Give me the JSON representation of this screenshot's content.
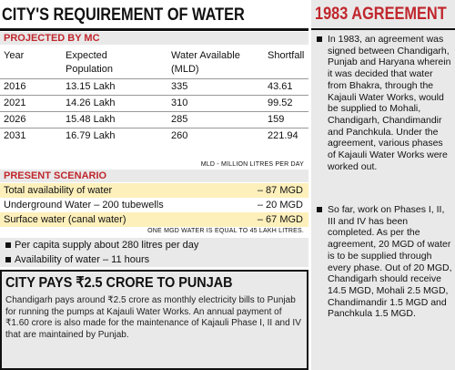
{
  "left": {
    "title": "CITY'S REQUIREMENT OF WATER",
    "projected": {
      "heading": "PROJECTED BY MC",
      "headers": [
        "Year",
        "Expected\nPopulation",
        "Water Available\n(MLD)",
        "Shortfall"
      ],
      "rows": [
        [
          "2016",
          "13.15 Lakh",
          "335",
          "43.61"
        ],
        [
          "2021",
          "14.26 Lakh",
          "310",
          "99.52"
        ],
        [
          "2026",
          "15.48 Lakh",
          "285",
          "159"
        ],
        [
          "2031",
          "16.79 Lakh",
          "260",
          "221.94"
        ]
      ],
      "note": "MLD - MILLION LITRES PER DAY"
    },
    "scenario": {
      "heading": "PRESENT SCENARIO",
      "rows": [
        {
          "label": "Total availability of water",
          "value": "– 87 MGD"
        },
        {
          "label": "Underground Water – 200 tubewells",
          "value": "– 20 MGD"
        },
        {
          "label": "Surface water (canal water)",
          "value": "– 67 MGD"
        }
      ],
      "note": "ONE MGD WATER IS EQUAL TO 45 LAKH LITRES."
    },
    "bullets": [
      "Per capita supply about 280 litres per day",
      "Availability of water – 11 hours"
    ],
    "box": {
      "title": "CITY PAYS ₹2.5 CRORE TO PUNJAB",
      "text": "Chandigarh pays around ₹2.5 crore as monthly electricity bills to Punjab for running the pumps at Kajauli Water Works. An annual payment of ₹1.60 crore is also made for the maintenance of Kajauli Phase I, II and IV that are maintained by Punjab."
    }
  },
  "right": {
    "title": "1983 AGREEMENT",
    "paragraphs": [
      "In 1983, an agreement was signed between Chandigarh, Punjab and Haryana wherein it was decided that water from Bhakra, through the Kajauli Water Works, would be supplied to Mohali, Chandigarh, Chandimandir and Panchkula. Under the agreement, various phases of Kajauli Water Works were worked out.",
      "So far, work on Phases I, II, III and IV has been completed. As per the agreement, 20 MGD of water is to be supplied through every phase. Out of 20 MGD, Chandigarh should receive 14.5 MGD, Mohali 2.5 MGD, Chandimandir 1.5 MGD and Panchkula 1.5 MGD."
    ]
  },
  "colors": {
    "accent": "#c0272d",
    "panel": "#e9e9e9",
    "highlight": "#fdf0bb"
  }
}
